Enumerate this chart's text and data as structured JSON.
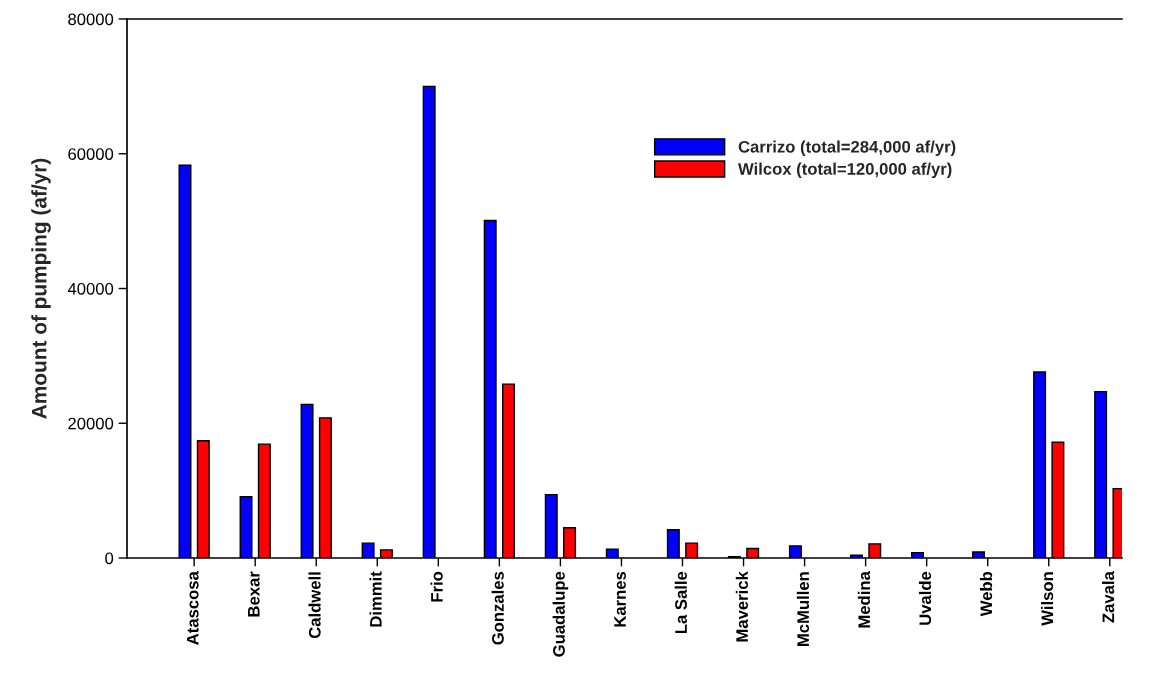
{
  "chart_data": {
    "type": "bar",
    "ylabel": "Amount of pumping (af/yr)",
    "categories": [
      "Atascosa",
      "Bexar",
      "Caldwell",
      "Dimmit",
      "Frio",
      "Gonzales",
      "Guadalupe",
      "Karnes",
      "La Salle",
      "Maverick",
      "McMullen",
      "Medina",
      "Uvalde",
      "Webb",
      "Wilson",
      "Zavala"
    ],
    "series": [
      {
        "name": "Carrizo (total=284,000 af/yr)",
        "color": "#0000ff",
        "values": [
          58300,
          9100,
          22800,
          2200,
          70000,
          50100,
          9400,
          1300,
          4200,
          200,
          1800,
          400,
          800,
          900,
          27600,
          24700
        ]
      },
      {
        "name": "Wilcox (total=120,000 af/yr)",
        "color": "#ff0000",
        "values": [
          17400,
          16900,
          20800,
          1200,
          null,
          25800,
          4500,
          null,
          2200,
          1400,
          null,
          2100,
          null,
          null,
          17200,
          10300
        ]
      }
    ],
    "ylim": [
      0,
      80000
    ],
    "yticks": [
      0,
      20000,
      40000,
      60000,
      80000
    ],
    "grid": false,
    "legend": "top right"
  }
}
